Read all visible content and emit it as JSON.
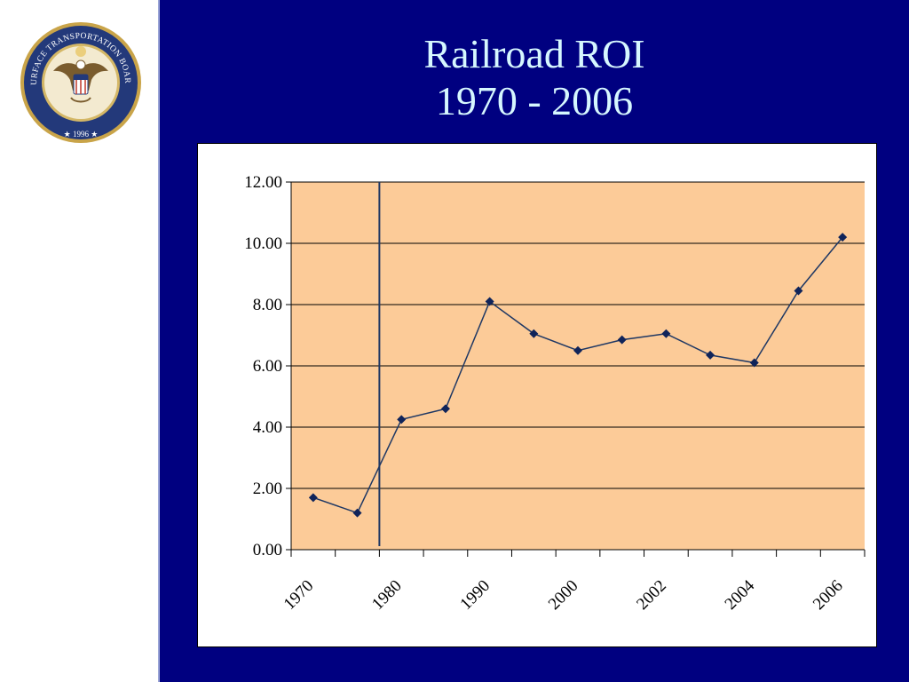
{
  "slide": {
    "title_line1": "Railroad ROI",
    "title_line2": "1970 - 2006"
  },
  "seal": {
    "ring_text": "SURFACE TRANSPORTATION BOARD",
    "year_text": "★ 1996 ★",
    "icon": "eagle-seal-icon"
  },
  "colors": {
    "background": "#000080",
    "title": "#d6f7ff",
    "plot_area": "#fccb98",
    "series": "#1f3864",
    "marker": "#10245a",
    "gridline": "#000000"
  },
  "chart_data": {
    "type": "line",
    "title": "",
    "xlabel": "",
    "ylabel": "",
    "ylim": [
      0,
      12
    ],
    "yticks": [
      "0.00",
      "2.00",
      "4.00",
      "6.00",
      "8.00",
      "10.00",
      "12.00"
    ],
    "tick_labels": [
      "1970",
      "1980",
      "1990",
      "2000",
      "2002",
      "2004",
      "2006"
    ],
    "grid": true,
    "legend": "none",
    "reference_line_after_point": 2,
    "series": [
      {
        "values": [
          1.7,
          1.2,
          4.25,
          4.6,
          8.1,
          7.05,
          6.5,
          6.85,
          7.05,
          6.35,
          6.1,
          8.45,
          10.2
        ]
      }
    ]
  }
}
